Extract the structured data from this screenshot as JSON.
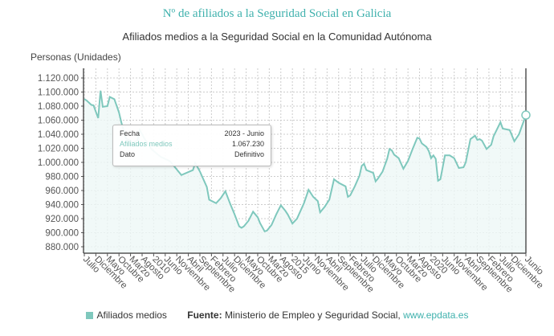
{
  "title": "Nº de afiliados a la Seguridad Social en Galicia",
  "subtitle": "Afiliados medios a la Seguridad Social en la Comunidad Autónoma",
  "colors": {
    "title": "#3fb1ad",
    "series": "#7fc8bd",
    "fill": "#eef7f6",
    "axis": "#555555"
  },
  "chart_data": {
    "type": "area",
    "ylabel": "Personas (Unidades)",
    "ylim": [
      880000,
      1120000
    ],
    "y_ticks": [
      "1.120.000",
      "1.100.000",
      "1.080.000",
      "1.060.000",
      "1.040.000",
      "1.020.000",
      "1.000.000",
      "980.000",
      "960.000",
      "940.000",
      "920.000",
      "900.000",
      "880.000"
    ],
    "x_range": [
      "2007-07",
      "2023-06"
    ],
    "x_tick_labels": [
      "Julio",
      "Diciembre",
      "Mayo",
      "Octubre",
      "Marzo",
      "Agosto",
      "2010",
      "Junio",
      "Noviembre",
      "Abril",
      "Septiembre",
      "Febrero",
      "Julio",
      "Diciembre",
      "Mayo",
      "Octubre",
      "Marzo",
      "Agosto",
      "2015",
      "Junio",
      "Noviembre",
      "Abril",
      "Septiembre",
      "Febrero",
      "Julio",
      "Diciembre",
      "Mayo",
      "Octubre",
      "Marzo",
      "Agosto",
      "2020",
      "Junio",
      "Noviembre",
      "Abril",
      "Septiembre",
      "Febrero",
      "Julio",
      "Diciembre",
      "Junio"
    ],
    "grid": true,
    "legend": "bottom",
    "series": [
      {
        "name": "Afiliados medios",
        "points": [
          [
            "2007-07",
            1090000
          ],
          [
            "2007-08",
            1088000
          ],
          [
            "2007-10",
            1082000
          ],
          [
            "2007-11",
            1081000
          ],
          [
            "2008-01",
            1063000
          ],
          [
            "2008-02",
            1102000
          ],
          [
            "2008-03",
            1079000
          ],
          [
            "2008-05",
            1080000
          ],
          [
            "2008-06",
            1093000
          ],
          [
            "2008-08",
            1090000
          ],
          [
            "2008-10",
            1071000
          ],
          [
            "2008-11",
            1057000
          ],
          [
            "2009-01",
            1034000
          ],
          [
            "2009-04",
            1029000
          ],
          [
            "2009-06",
            1031000
          ],
          [
            "2009-07",
            1046000
          ],
          [
            "2009-09",
            1034000
          ],
          [
            "2009-12",
            1019000
          ],
          [
            "2010-04",
            1008000
          ],
          [
            "2010-08",
            1002000
          ],
          [
            "2011-01",
            982000
          ],
          [
            "2011-06",
            989000
          ],
          [
            "2011-07",
            999000
          ],
          [
            "2011-09",
            987000
          ],
          [
            "2011-12",
            965000
          ],
          [
            "2012-01",
            947000
          ],
          [
            "2012-04",
            942000
          ],
          [
            "2012-06",
            949000
          ],
          [
            "2012-08",
            959000
          ],
          [
            "2012-10",
            942000
          ],
          [
            "2012-12",
            926000
          ],
          [
            "2013-02",
            909000
          ],
          [
            "2013-03",
            907000
          ],
          [
            "2013-04",
            909000
          ],
          [
            "2013-06",
            917000
          ],
          [
            "2013-08",
            930000
          ],
          [
            "2013-10",
            922000
          ],
          [
            "2013-11",
            914000
          ],
          [
            "2014-01",
            902000
          ],
          [
            "2014-02",
            903000
          ],
          [
            "2014-04",
            911000
          ],
          [
            "2014-06",
            926000
          ],
          [
            "2014-08",
            939000
          ],
          [
            "2014-10",
            931000
          ],
          [
            "2014-11",
            926000
          ],
          [
            "2015-01",
            913000
          ],
          [
            "2015-03",
            920000
          ],
          [
            "2015-06",
            942000
          ],
          [
            "2015-08",
            961000
          ],
          [
            "2015-10",
            951000
          ],
          [
            "2015-12",
            945000
          ],
          [
            "2016-01",
            929000
          ],
          [
            "2016-03",
            937000
          ],
          [
            "2016-05",
            947000
          ],
          [
            "2016-07",
            976000
          ],
          [
            "2016-09",
            971000
          ],
          [
            "2016-12",
            966000
          ],
          [
            "2017-01",
            951000
          ],
          [
            "2017-02",
            953000
          ],
          [
            "2017-04",
            966000
          ],
          [
            "2017-06",
            981000
          ],
          [
            "2017-07",
            995000
          ],
          [
            "2017-08",
            998000
          ],
          [
            "2017-09",
            989000
          ],
          [
            "2017-12",
            985000
          ],
          [
            "2018-01",
            973000
          ],
          [
            "2018-02",
            977000
          ],
          [
            "2018-04",
            987000
          ],
          [
            "2018-06",
            1005000
          ],
          [
            "2018-07",
            1019000
          ],
          [
            "2018-08",
            1017000
          ],
          [
            "2018-09",
            1011000
          ],
          [
            "2018-11",
            1006000
          ],
          [
            "2019-01",
            991000
          ],
          [
            "2019-03",
            1002000
          ],
          [
            "2019-05",
            1019000
          ],
          [
            "2019-07",
            1035000
          ],
          [
            "2019-08",
            1034000
          ],
          [
            "2019-09",
            1027000
          ],
          [
            "2019-11",
            1022000
          ],
          [
            "2019-12",
            1016000
          ],
          [
            "2020-01",
            1006000
          ],
          [
            "2020-02",
            1010000
          ],
          [
            "2020-03",
            1005000
          ],
          [
            "2020-04",
            974000
          ],
          [
            "2020-05",
            976000
          ],
          [
            "2020-07",
            1010000
          ],
          [
            "2020-09",
            1010000
          ],
          [
            "2020-11",
            1006000
          ],
          [
            "2021-01",
            992000
          ],
          [
            "2021-03",
            993000
          ],
          [
            "2021-04",
            1000000
          ],
          [
            "2021-06",
            1033000
          ],
          [
            "2021-08",
            1038000
          ],
          [
            "2021-09",
            1032000
          ],
          [
            "2021-10",
            1033000
          ],
          [
            "2021-11",
            1031000
          ],
          [
            "2022-01",
            1019000
          ],
          [
            "2022-03",
            1025000
          ],
          [
            "2022-04",
            1037000
          ],
          [
            "2022-07",
            1057000
          ],
          [
            "2022-08",
            1048000
          ],
          [
            "2022-11",
            1046000
          ],
          [
            "2023-01",
            1030000
          ],
          [
            "2023-03",
            1040000
          ],
          [
            "2023-06",
            1067230
          ]
        ]
      }
    ]
  },
  "tooltip": {
    "fecha_label": "Fecha",
    "fecha_value": "2023 - Junio",
    "series_label": "Afiliados medios",
    "series_value": "1.067.230",
    "dato_label": "Dato",
    "dato_value": "Definitivo"
  },
  "legend": {
    "series_label": "Afiliados medios",
    "source_label": "Fuente:",
    "source_text": "Ministerio de Empleo y Seguridad Social,",
    "source_link": "www.epdata.es"
  }
}
